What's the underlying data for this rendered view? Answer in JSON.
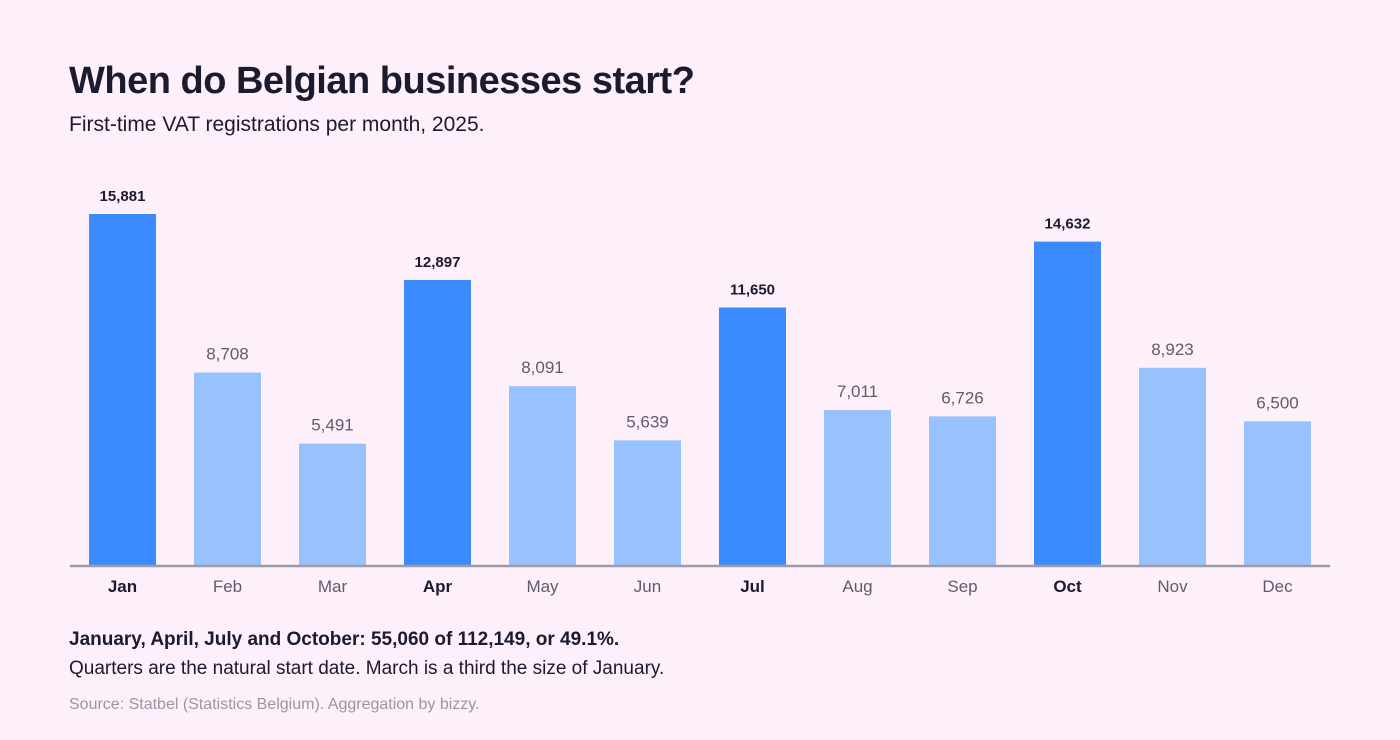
{
  "chart_data": {
    "type": "bar",
    "title": "When do Belgian businesses start?",
    "subtitle": "First-time VAT registrations per month, 2025.",
    "categories": [
      "Jan",
      "Feb",
      "Mar",
      "Apr",
      "May",
      "Jun",
      "Jul",
      "Aug",
      "Sep",
      "Oct",
      "Nov",
      "Dec"
    ],
    "values": [
      15881,
      8708,
      5491,
      12897,
      8091,
      5639,
      11650,
      7011,
      6726,
      14632,
      8923,
      6500
    ],
    "value_labels": [
      "15,881",
      "8,708",
      "5,491",
      "12,897",
      "8,091",
      "5,639",
      "11,650",
      "7,011",
      "6,726",
      "14,632",
      "8,923",
      "6,500"
    ],
    "highlighted": [
      true,
      false,
      false,
      true,
      false,
      false,
      true,
      false,
      false,
      true,
      false,
      false
    ],
    "ylim": [
      0,
      15881
    ],
    "grid": false,
    "legend": "none",
    "colors": {
      "highlight": "#3b8bff",
      "normal": "#97c1ff",
      "axis": "#9e9aa6",
      "label_highlight": "#1c1a2e",
      "label_normal": "#5f5c69"
    }
  },
  "notes": {
    "headline": "January, April, July and October: 55,060 of 112,149, or 49.1%.",
    "detail": "Quarters are the natural start date. March is a third the size of January.",
    "source": "Source: Statbel (Statistics Belgium). Aggregation by bizzy."
  }
}
